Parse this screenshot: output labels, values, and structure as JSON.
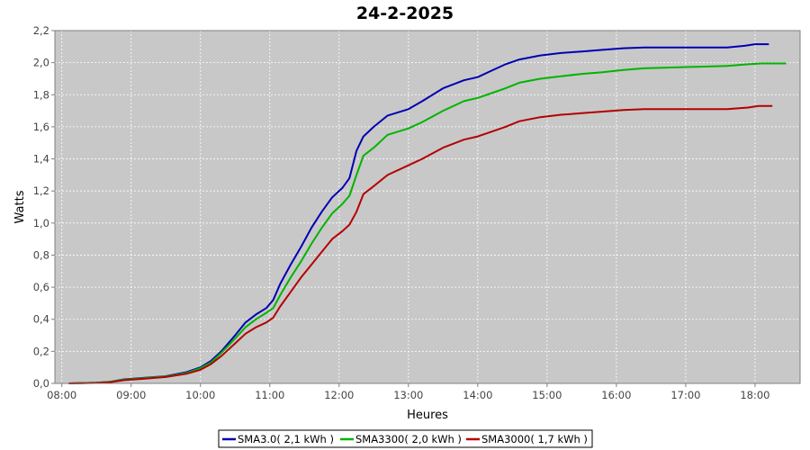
{
  "chart_data": {
    "type": "line",
    "title": "24-2-2025",
    "xlabel": "Heures",
    "ylabel": "Watts",
    "x_ticks": [
      "08:00",
      "09:00",
      "10:00",
      "11:00",
      "12:00",
      "13:00",
      "14:00",
      "15:00",
      "16:00",
      "17:00",
      "18:00"
    ],
    "y_ticks": [
      "0,0",
      "0,2",
      "0,4",
      "0,6",
      "0,8",
      "1,0",
      "1,2",
      "1,4",
      "1,6",
      "1,8",
      "2,0",
      "2,2"
    ],
    "xlim_hours": [
      7.9,
      18.65
    ],
    "ylim": [
      0,
      2.2
    ],
    "grid": true,
    "legend_position": "bottom",
    "series": [
      {
        "name": "SMA3.0( 2,1 kWh )",
        "color": "#0000b4",
        "points": [
          [
            8.1,
            0.0
          ],
          [
            8.5,
            0.004
          ],
          [
            8.7,
            0.01
          ],
          [
            8.9,
            0.025
          ],
          [
            9.2,
            0.035
          ],
          [
            9.5,
            0.045
          ],
          [
            9.8,
            0.07
          ],
          [
            10.0,
            0.1
          ],
          [
            10.15,
            0.14
          ],
          [
            10.3,
            0.2
          ],
          [
            10.5,
            0.3
          ],
          [
            10.65,
            0.38
          ],
          [
            10.8,
            0.43
          ],
          [
            10.95,
            0.47
          ],
          [
            11.05,
            0.52
          ],
          [
            11.15,
            0.62
          ],
          [
            11.3,
            0.74
          ],
          [
            11.45,
            0.85
          ],
          [
            11.6,
            0.97
          ],
          [
            11.75,
            1.07
          ],
          [
            11.9,
            1.16
          ],
          [
            12.05,
            1.22
          ],
          [
            12.15,
            1.28
          ],
          [
            12.25,
            1.45
          ],
          [
            12.35,
            1.54
          ],
          [
            12.5,
            1.6
          ],
          [
            12.7,
            1.67
          ],
          [
            13.0,
            1.71
          ],
          [
            13.2,
            1.76
          ],
          [
            13.5,
            1.84
          ],
          [
            13.8,
            1.89
          ],
          [
            14.0,
            1.91
          ],
          [
            14.2,
            1.95
          ],
          [
            14.4,
            1.99
          ],
          [
            14.6,
            2.02
          ],
          [
            14.9,
            2.045
          ],
          [
            15.2,
            2.06
          ],
          [
            15.5,
            2.07
          ],
          [
            15.8,
            2.08
          ],
          [
            16.1,
            2.09
          ],
          [
            16.4,
            2.095
          ],
          [
            16.8,
            2.095
          ],
          [
            17.2,
            2.095
          ],
          [
            17.6,
            2.095
          ],
          [
            17.85,
            2.105
          ],
          [
            18.0,
            2.115
          ],
          [
            18.2,
            2.115
          ]
        ]
      },
      {
        "name": "SMA3300( 2,0 kWh )",
        "color": "#00b400",
        "points": [
          [
            8.1,
            0.0
          ],
          [
            8.5,
            0.004
          ],
          [
            8.7,
            0.01
          ],
          [
            8.9,
            0.023
          ],
          [
            9.2,
            0.033
          ],
          [
            9.5,
            0.043
          ],
          [
            9.8,
            0.065
          ],
          [
            10.0,
            0.095
          ],
          [
            10.15,
            0.13
          ],
          [
            10.3,
            0.19
          ],
          [
            10.5,
            0.28
          ],
          [
            10.65,
            0.35
          ],
          [
            10.8,
            0.4
          ],
          [
            10.95,
            0.44
          ],
          [
            11.05,
            0.47
          ],
          [
            11.15,
            0.55
          ],
          [
            11.3,
            0.66
          ],
          [
            11.45,
            0.76
          ],
          [
            11.6,
            0.87
          ],
          [
            11.75,
            0.97
          ],
          [
            11.9,
            1.06
          ],
          [
            12.05,
            1.12
          ],
          [
            12.15,
            1.17
          ],
          [
            12.25,
            1.3
          ],
          [
            12.35,
            1.42
          ],
          [
            12.5,
            1.47
          ],
          [
            12.7,
            1.55
          ],
          [
            13.0,
            1.59
          ],
          [
            13.2,
            1.63
          ],
          [
            13.5,
            1.7
          ],
          [
            13.8,
            1.76
          ],
          [
            14.0,
            1.78
          ],
          [
            14.2,
            1.81
          ],
          [
            14.4,
            1.84
          ],
          [
            14.6,
            1.875
          ],
          [
            14.9,
            1.9
          ],
          [
            15.2,
            1.915
          ],
          [
            15.5,
            1.93
          ],
          [
            15.8,
            1.94
          ],
          [
            16.1,
            1.955
          ],
          [
            16.4,
            1.965
          ],
          [
            16.8,
            1.97
          ],
          [
            17.2,
            1.975
          ],
          [
            17.6,
            1.98
          ],
          [
            17.9,
            1.99
          ],
          [
            18.1,
            1.995
          ],
          [
            18.45,
            1.995
          ]
        ]
      },
      {
        "name": "SMA3000( 1,7 kWh )",
        "color": "#b40000",
        "points": [
          [
            8.1,
            0.0
          ],
          [
            8.5,
            0.003
          ],
          [
            8.7,
            0.008
          ],
          [
            8.9,
            0.02
          ],
          [
            9.2,
            0.03
          ],
          [
            9.5,
            0.04
          ],
          [
            9.8,
            0.06
          ],
          [
            10.0,
            0.085
          ],
          [
            10.15,
            0.12
          ],
          [
            10.3,
            0.17
          ],
          [
            10.5,
            0.25
          ],
          [
            10.65,
            0.31
          ],
          [
            10.8,
            0.35
          ],
          [
            10.95,
            0.38
          ],
          [
            11.05,
            0.41
          ],
          [
            11.15,
            0.48
          ],
          [
            11.3,
            0.57
          ],
          [
            11.45,
            0.66
          ],
          [
            11.6,
            0.74
          ],
          [
            11.75,
            0.82
          ],
          [
            11.9,
            0.9
          ],
          [
            12.05,
            0.95
          ],
          [
            12.15,
            0.99
          ],
          [
            12.25,
            1.07
          ],
          [
            12.35,
            1.18
          ],
          [
            12.5,
            1.23
          ],
          [
            12.7,
            1.3
          ],
          [
            13.0,
            1.36
          ],
          [
            13.2,
            1.4
          ],
          [
            13.5,
            1.47
          ],
          [
            13.8,
            1.52
          ],
          [
            14.0,
            1.54
          ],
          [
            14.2,
            1.57
          ],
          [
            14.4,
            1.6
          ],
          [
            14.6,
            1.635
          ],
          [
            14.9,
            1.66
          ],
          [
            15.2,
            1.675
          ],
          [
            15.5,
            1.685
          ],
          [
            15.8,
            1.695
          ],
          [
            16.1,
            1.705
          ],
          [
            16.4,
            1.71
          ],
          [
            16.8,
            1.71
          ],
          [
            17.2,
            1.71
          ],
          [
            17.6,
            1.71
          ],
          [
            17.9,
            1.72
          ],
          [
            18.05,
            1.73
          ],
          [
            18.25,
            1.73
          ]
        ]
      }
    ]
  }
}
